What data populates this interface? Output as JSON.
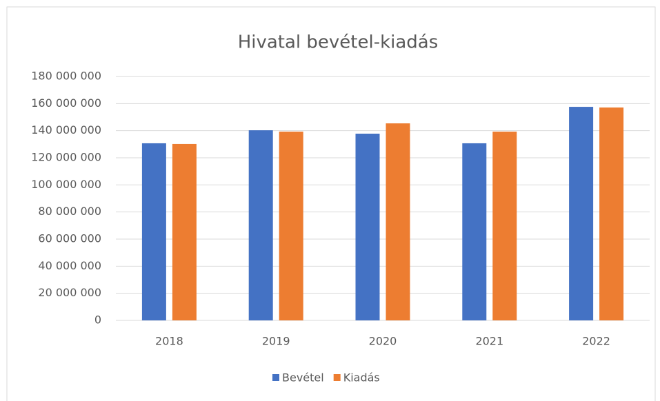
{
  "chart_data": {
    "type": "bar",
    "title": "Hivatal bevétel-kiadás",
    "categories": [
      "2018",
      "2019",
      "2020",
      "2021",
      "2022"
    ],
    "series": [
      {
        "name": "Bevétel",
        "color": "#4472c4",
        "values": [
          130700000,
          140300000,
          137800000,
          130700000,
          157600000
        ]
      },
      {
        "name": "Kiadás",
        "color": "#ed7d31",
        "values": [
          130200000,
          139300000,
          145400000,
          139300000,
          157100000
        ]
      }
    ],
    "ylim": [
      0,
      180000000
    ],
    "yticks": [
      0,
      {
        "value": 20000000,
        "label": "20 000 000"
      },
      {
        "value": 40000000,
        "label": "40 000 000"
      },
      {
        "value": 60000000,
        "label": "60 000 000"
      },
      {
        "value": 80000000,
        "label": "80 000 000"
      },
      {
        "value": 100000000,
        "label": "100 000 000"
      },
      {
        "value": 120000000,
        "label": "120 000 000"
      },
      {
        "value": 140000000,
        "label": "140 000 000"
      },
      {
        "value": 160000000,
        "label": "160 000 000"
      },
      {
        "value": 180000000,
        "label": "180 000 000"
      }
    ],
    "grid": true,
    "legend": "bottom"
  }
}
